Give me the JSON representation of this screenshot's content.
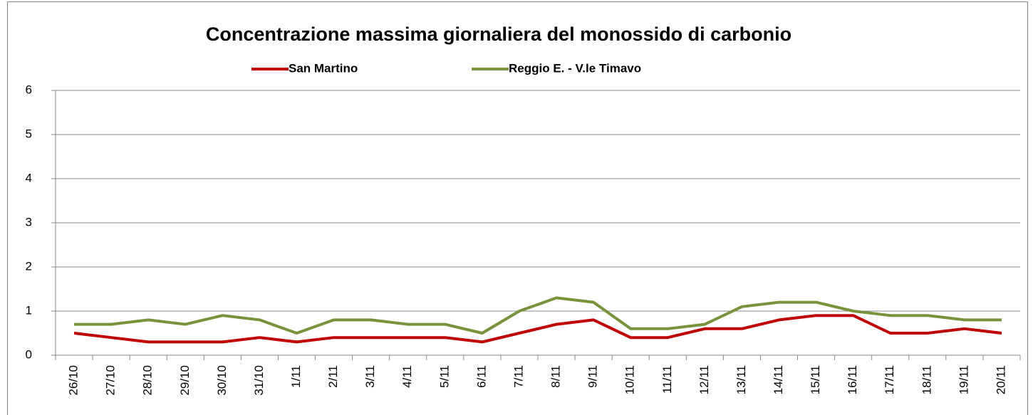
{
  "chart_data": {
    "type": "line",
    "title": "Concentrazione massima giornaliera del monossido di carbonio",
    "categories": [
      "26/10",
      "27/10",
      "28/10",
      "29/10",
      "30/10",
      "31/10",
      "1/11",
      "2/11",
      "3/11",
      "4/11",
      "5/11",
      "6/11",
      "7/11",
      "8/11",
      "9/11",
      "10/11",
      "11/11",
      "12/11",
      "13/11",
      "14/11",
      "15/11",
      "16/11",
      "17/11",
      "18/11",
      "19/11",
      "20/11"
    ],
    "series": [
      {
        "name": "San Martino",
        "color": "#c00000",
        "values": [
          0.5,
          0.4,
          0.3,
          0.3,
          0.3,
          0.4,
          0.3,
          0.4,
          0.4,
          0.4,
          0.4,
          0.3,
          0.5,
          0.7,
          0.8,
          0.4,
          0.4,
          0.6,
          0.6,
          0.8,
          0.9,
          0.9,
          0.5,
          0.5,
          0.6,
          0.5
        ]
      },
      {
        "name": "Reggio E. - V.le Timavo",
        "color": "#77933c",
        "values": [
          0.7,
          0.7,
          0.8,
          0.7,
          0.9,
          0.8,
          0.5,
          0.8,
          0.8,
          0.7,
          0.7,
          0.5,
          1.0,
          1.3,
          1.2,
          0.6,
          0.6,
          0.7,
          1.1,
          1.2,
          1.2,
          1.0,
          0.9,
          0.9,
          0.8,
          0.8
        ]
      }
    ],
    "ylim": [
      0,
      6
    ],
    "yticks": [
      0,
      1,
      2,
      3,
      4,
      5,
      6
    ],
    "grid": true,
    "legend": "top"
  }
}
